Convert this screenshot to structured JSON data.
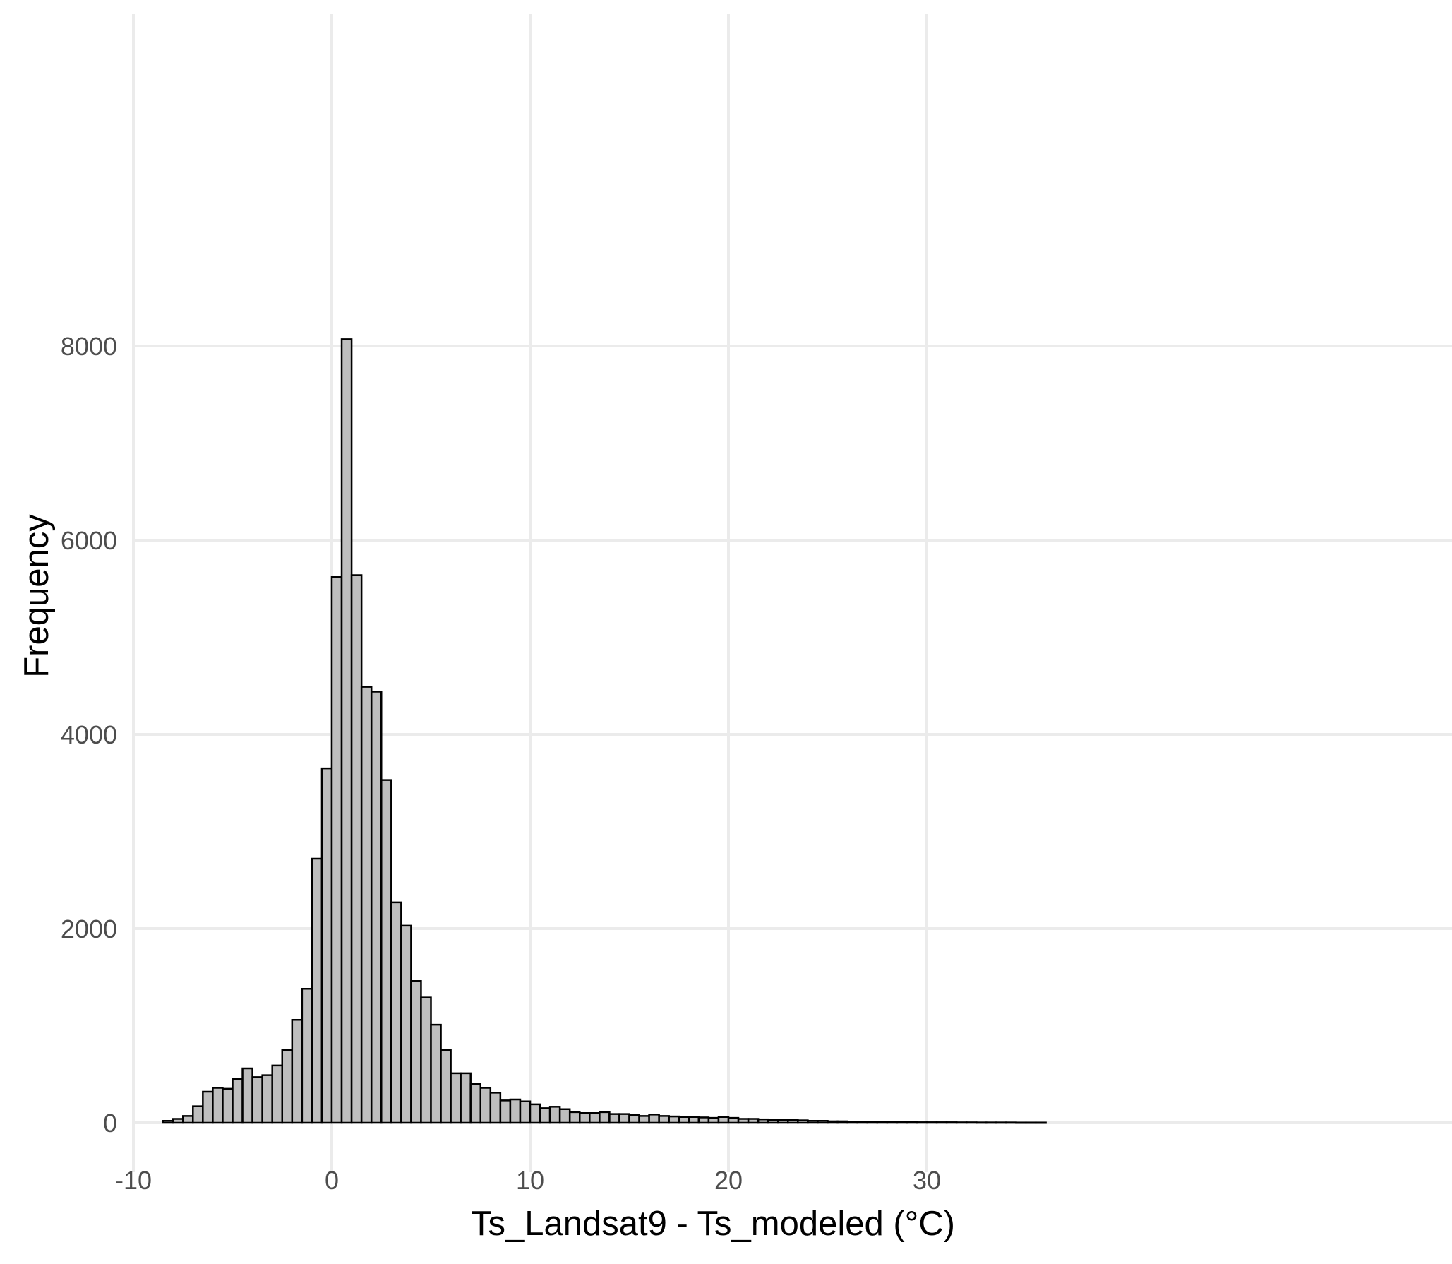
{
  "chart_data": {
    "type": "bar",
    "subtype": "histogram",
    "xlabel": "Ts_Landsat9 - Ts_modeled (°C)",
    "ylabel": "Frequency",
    "xlim": [
      -10,
      37
    ],
    "ylim": [
      -350,
      8400
    ],
    "x_ticks": [
      -10,
      0,
      10,
      20,
      30
    ],
    "y_ticks": [
      0,
      2000,
      4000,
      6000,
      8000
    ],
    "grid": true,
    "legend": "none",
    "bin_start": -8.5,
    "bin_width": 0.5,
    "values": [
      20,
      40,
      70,
      170,
      320,
      360,
      350,
      450,
      560,
      470,
      490,
      590,
      750,
      1060,
      1380,
      2720,
      3650,
      5620,
      8070,
      5640,
      4490,
      4440,
      3530,
      2270,
      2030,
      1460,
      1290,
      1010,
      750,
      510,
      510,
      400,
      360,
      310,
      230,
      240,
      220,
      190,
      150,
      165,
      140,
      110,
      100,
      100,
      110,
      90,
      90,
      80,
      70,
      85,
      70,
      65,
      60,
      60,
      55,
      50,
      60,
      50,
      40,
      40,
      35,
      30,
      30,
      30,
      25,
      20,
      20,
      15,
      15,
      12,
      10,
      10,
      8,
      8,
      8,
      6,
      5,
      5,
      5,
      5,
      4,
      4,
      3,
      3,
      3,
      3,
      2,
      2,
      2
    ],
    "colors": {
      "bar_fill": "#bebebe",
      "bar_stroke": "#000000",
      "grid": "#ebebeb",
      "tick_text": "#4d4d4d"
    }
  }
}
